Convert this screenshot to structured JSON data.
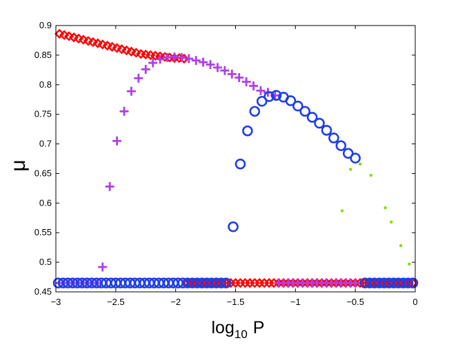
{
  "chart_data": {
    "type": "scatter",
    "title": "",
    "xlabel_main": "log",
    "xlabel_sub": "10",
    "xlabel_var": "P",
    "ylabel": "μ",
    "xlim": [
      -3,
      0
    ],
    "ylim": [
      0.45,
      0.9
    ],
    "xticks": [
      -3,
      -2.5,
      -2,
      -1.5,
      -1,
      -0.5,
      0
    ],
    "xtick_labels": [
      "−3",
      "−2.5",
      "−2",
      "−1.5",
      "−1",
      "−0.5",
      "0"
    ],
    "yticks": [
      0.45,
      0.5,
      0.55,
      0.6,
      0.65,
      0.7,
      0.75,
      0.8,
      0.85,
      0.9
    ],
    "ytick_labels": [
      "0.45",
      "0.5",
      "0.55",
      "0.6",
      "0.65",
      "0.7",
      "0.75",
      "0.8",
      "0.85",
      "0.9"
    ],
    "grid": false,
    "series": [
      {
        "name": "red-diamonds",
        "marker": "diamond",
        "color": "#ff0000",
        "points": [
          [
            -2.97,
            0.886
          ],
          [
            -2.93,
            0.884
          ],
          [
            -2.89,
            0.882
          ],
          [
            -2.85,
            0.88
          ],
          [
            -2.81,
            0.878
          ],
          [
            -2.77,
            0.876
          ],
          [
            -2.73,
            0.874
          ],
          [
            -2.69,
            0.872
          ],
          [
            -2.65,
            0.87
          ],
          [
            -2.61,
            0.868
          ],
          [
            -2.57,
            0.866
          ],
          [
            -2.53,
            0.864
          ],
          [
            -2.49,
            0.862
          ],
          [
            -2.45,
            0.86
          ],
          [
            -2.41,
            0.858
          ],
          [
            -2.37,
            0.856
          ],
          [
            -2.33,
            0.854
          ],
          [
            -2.29,
            0.852
          ],
          [
            -2.25,
            0.851
          ],
          [
            -2.21,
            0.85
          ],
          [
            -2.17,
            0.849
          ],
          [
            -2.13,
            0.848
          ],
          [
            -2.09,
            0.847
          ],
          [
            -2.05,
            0.846
          ],
          [
            -2.01,
            0.845
          ],
          [
            -1.97,
            0.845
          ],
          [
            -1.93,
            0.844
          ],
          [
            -1.9,
            0.465
          ],
          [
            -1.86,
            0.465
          ],
          [
            -1.82,
            0.465
          ],
          [
            -1.78,
            0.465
          ],
          [
            -1.74,
            0.465
          ],
          [
            -1.7,
            0.465
          ],
          [
            -1.66,
            0.465
          ],
          [
            -1.62,
            0.465
          ],
          [
            -1.58,
            0.465
          ],
          [
            -1.54,
            0.465
          ],
          [
            -1.5,
            0.465
          ],
          [
            -1.46,
            0.465
          ],
          [
            -1.42,
            0.465
          ],
          [
            -1.38,
            0.465
          ],
          [
            -1.34,
            0.465
          ],
          [
            -1.3,
            0.465
          ],
          [
            -1.26,
            0.465
          ],
          [
            -1.22,
            0.465
          ],
          [
            -1.18,
            0.465
          ],
          [
            -1.14,
            0.465
          ],
          [
            -1.1,
            0.465
          ],
          [
            -1.06,
            0.465
          ],
          [
            -1.02,
            0.465
          ],
          [
            -0.98,
            0.465
          ],
          [
            -0.94,
            0.465
          ],
          [
            -0.9,
            0.465
          ],
          [
            -0.86,
            0.465
          ],
          [
            -0.82,
            0.465
          ],
          [
            -0.78,
            0.465
          ],
          [
            -0.74,
            0.465
          ],
          [
            -0.7,
            0.465
          ],
          [
            -0.66,
            0.465
          ],
          [
            -0.62,
            0.465
          ],
          [
            -0.58,
            0.465
          ],
          [
            -0.54,
            0.465
          ],
          [
            -0.5,
            0.465
          ],
          [
            -0.46,
            0.465
          ],
          [
            -0.42,
            0.465
          ],
          [
            -0.38,
            0.465
          ],
          [
            -0.34,
            0.465
          ],
          [
            -0.3,
            0.465
          ],
          [
            -0.26,
            0.465
          ],
          [
            -0.22,
            0.465
          ],
          [
            -0.18,
            0.465
          ],
          [
            -0.14,
            0.465
          ],
          [
            -0.1,
            0.465
          ],
          [
            -0.06,
            0.465
          ],
          [
            -0.02,
            0.465
          ]
        ]
      },
      {
        "name": "purple-plus",
        "marker": "plus",
        "color": "#b03ee6",
        "points": [
          [
            -2.97,
            0.465
          ],
          [
            -2.93,
            0.465
          ],
          [
            -2.89,
            0.465
          ],
          [
            -2.85,
            0.465
          ],
          [
            -2.81,
            0.465
          ],
          [
            -2.77,
            0.465
          ],
          [
            -2.73,
            0.465
          ],
          [
            -2.69,
            0.465
          ],
          [
            -2.65,
            0.465
          ],
          [
            -2.61,
            0.492
          ],
          [
            -2.55,
            0.628
          ],
          [
            -2.49,
            0.705
          ],
          [
            -2.43,
            0.755
          ],
          [
            -2.37,
            0.789
          ],
          [
            -2.31,
            0.811
          ],
          [
            -2.25,
            0.826
          ],
          [
            -2.19,
            0.837
          ],
          [
            -2.13,
            0.843
          ],
          [
            -2.07,
            0.846
          ],
          [
            -2.01,
            0.847
          ],
          [
            -1.95,
            0.846
          ],
          [
            -1.89,
            0.844
          ],
          [
            -1.83,
            0.841
          ],
          [
            -1.77,
            0.838
          ],
          [
            -1.71,
            0.834
          ],
          [
            -1.65,
            0.829
          ],
          [
            -1.59,
            0.824
          ],
          [
            -1.53,
            0.818
          ],
          [
            -1.47,
            0.812
          ],
          [
            -1.41,
            0.805
          ],
          [
            -1.35,
            0.798
          ],
          [
            -1.29,
            0.79
          ],
          [
            -1.23,
            0.787
          ],
          [
            -1.17,
            0.782
          ],
          [
            -1.14,
            0.465
          ],
          [
            -1.1,
            0.465
          ],
          [
            -1.06,
            0.465
          ],
          [
            -1.02,
            0.465
          ],
          [
            -0.98,
            0.465
          ],
          [
            -0.94,
            0.465
          ],
          [
            -0.9,
            0.465
          ],
          [
            -0.86,
            0.465
          ],
          [
            -0.82,
            0.465
          ],
          [
            -0.78,
            0.465
          ],
          [
            -0.74,
            0.465
          ],
          [
            -0.7,
            0.465
          ],
          [
            -0.66,
            0.465
          ],
          [
            -0.62,
            0.465
          ],
          [
            -0.58,
            0.465
          ],
          [
            -0.54,
            0.465
          ],
          [
            -0.5,
            0.465
          ]
        ]
      },
      {
        "name": "blue-circles",
        "marker": "circle",
        "color": "#1f3fe6",
        "points": [
          [
            -2.98,
            0.465
          ],
          [
            -2.94,
            0.465
          ],
          [
            -2.9,
            0.465
          ],
          [
            -2.86,
            0.465
          ],
          [
            -2.82,
            0.465
          ],
          [
            -2.78,
            0.465
          ],
          [
            -2.74,
            0.465
          ],
          [
            -2.7,
            0.465
          ],
          [
            -2.66,
            0.465
          ],
          [
            -2.62,
            0.465
          ],
          [
            -2.58,
            0.465
          ],
          [
            -2.54,
            0.465
          ],
          [
            -2.5,
            0.465
          ],
          [
            -2.46,
            0.465
          ],
          [
            -2.42,
            0.465
          ],
          [
            -2.38,
            0.465
          ],
          [
            -2.34,
            0.465
          ],
          [
            -2.3,
            0.465
          ],
          [
            -2.26,
            0.465
          ],
          [
            -2.22,
            0.465
          ],
          [
            -2.18,
            0.465
          ],
          [
            -2.14,
            0.465
          ],
          [
            -2.1,
            0.465
          ],
          [
            -2.06,
            0.465
          ],
          [
            -2.02,
            0.465
          ],
          [
            -1.98,
            0.465
          ],
          [
            -1.94,
            0.465
          ],
          [
            -1.9,
            0.465
          ],
          [
            -1.86,
            0.465
          ],
          [
            -1.82,
            0.465
          ],
          [
            -1.78,
            0.465
          ],
          [
            -1.74,
            0.465
          ],
          [
            -1.7,
            0.465
          ],
          [
            -1.66,
            0.465
          ],
          [
            -1.62,
            0.465
          ],
          [
            -1.58,
            0.465
          ],
          [
            -1.52,
            0.56
          ],
          [
            -1.46,
            0.666
          ],
          [
            -1.4,
            0.722
          ],
          [
            -1.34,
            0.755
          ],
          [
            -1.28,
            0.772
          ],
          [
            -1.22,
            0.78
          ],
          [
            -1.16,
            0.782
          ],
          [
            -1.1,
            0.779
          ],
          [
            -1.04,
            0.773
          ],
          [
            -0.98,
            0.764
          ],
          [
            -0.92,
            0.755
          ],
          [
            -0.86,
            0.745
          ],
          [
            -0.8,
            0.735
          ],
          [
            -0.74,
            0.723
          ],
          [
            -0.68,
            0.71
          ],
          [
            -0.62,
            0.697
          ],
          [
            -0.56,
            0.684
          ],
          [
            -0.5,
            0.676
          ],
          [
            -0.42,
            0.465
          ],
          [
            -0.38,
            0.465
          ],
          [
            -0.34,
            0.465
          ],
          [
            -0.3,
            0.465
          ],
          [
            -0.26,
            0.465
          ],
          [
            -0.22,
            0.465
          ],
          [
            -0.18,
            0.465
          ],
          [
            -0.14,
            0.465
          ],
          [
            -0.1,
            0.465
          ],
          [
            -0.06,
            0.465
          ],
          [
            -0.02,
            0.465
          ]
        ]
      },
      {
        "name": "green-dots",
        "marker": "dot",
        "color": "#7be000",
        "points": [
          [
            -0.61,
            0.587
          ],
          [
            -0.54,
            0.657
          ],
          [
            -0.46,
            0.666
          ],
          [
            -0.37,
            0.647
          ],
          [
            -0.25,
            0.592
          ],
          [
            -0.2,
            0.568
          ],
          [
            -0.12,
            0.528
          ],
          [
            -0.05,
            0.497
          ]
        ]
      }
    ]
  }
}
